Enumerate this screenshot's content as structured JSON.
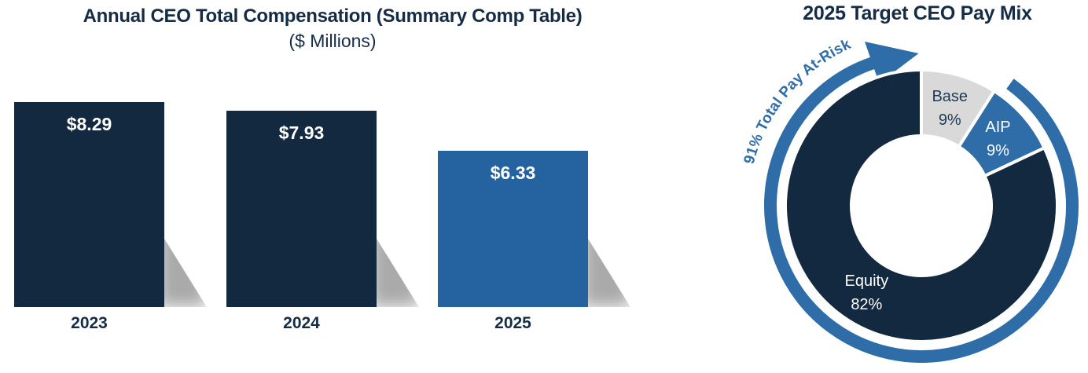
{
  "page": {
    "background_color": "#FFFFFF"
  },
  "colors": {
    "navy": "#13293F",
    "bar_blue": "#2563A0",
    "accent_blue": "#2E6DA8",
    "gray": "#D9D9D9",
    "title_text": "#142C45"
  },
  "chart_data": [
    {
      "type": "bar",
      "title": "Annual CEO Total Compensation (Summary Comp Table)",
      "subtitle": "($ Millions)",
      "xlabel": "",
      "ylabel": "",
      "categories": [
        "2023",
        "2024",
        "2025"
      ],
      "values": [
        8.29,
        7.93,
        6.33
      ],
      "value_labels": [
        "$8.29",
        "$7.93",
        "$6.33"
      ],
      "bar_colors": [
        "#13293F",
        "#13293F",
        "#2563A0"
      ],
      "value_label_color": "#FFFFFF",
      "category_label_color": "#142C45",
      "ylim": [
        0,
        8.5
      ],
      "grid": false,
      "axes_visible": false,
      "legend": "none"
    },
    {
      "type": "pie",
      "subtype": "donut",
      "title": "2025 Target CEO Pay Mix",
      "start_angle_deg": 0,
      "direction": "clockwise",
      "segments": [
        {
          "label": "Base",
          "pct_label": "9%",
          "value": 9,
          "color": "#D9D9D9",
          "label_color": "#1F3A55"
        },
        {
          "label": "AIP",
          "pct_label": "9%",
          "value": 9,
          "color": "#2E6DA8",
          "label_color": "#FFFFFF"
        },
        {
          "label": "Equity",
          "pct_label": "82%",
          "value": 82,
          "color": "#13293F",
          "label_color": "#FFFFFF"
        }
      ],
      "annotation": {
        "text": "91% Total Pay At-Risk",
        "color": "#2E6DA8",
        "covers_segments": [
          "AIP",
          "Equity"
        ]
      }
    }
  ]
}
